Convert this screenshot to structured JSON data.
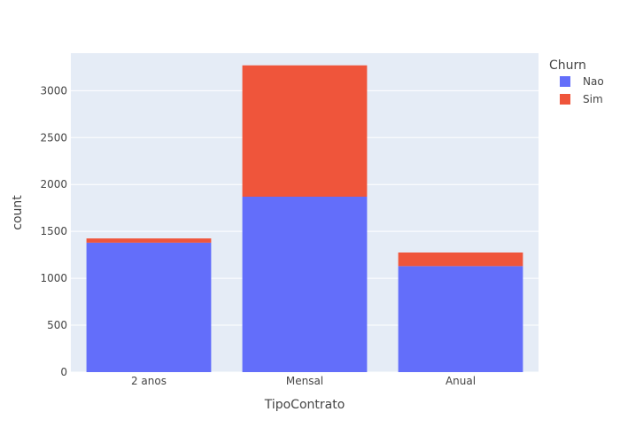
{
  "chart_data": {
    "type": "bar",
    "barmode": "stack",
    "categories": [
      "2 anos",
      "Mensal",
      "Anual"
    ],
    "series": [
      {
        "name": "Nao",
        "values": [
          1380,
          1870,
          1130
        ],
        "color": "#636efa"
      },
      {
        "name": "Sim",
        "values": [
          45,
          1400,
          145
        ],
        "color": "#ef553b"
      }
    ],
    "xlabel": "TipoContrato",
    "ylabel": "count",
    "ylim": [
      0,
      3400
    ],
    "yticks": [
      0,
      500,
      1000,
      1500,
      2000,
      2500,
      3000
    ],
    "legend": {
      "title": "Churn",
      "placement": "top-right"
    },
    "grid": true,
    "plot_background": "#e5ecf6"
  }
}
